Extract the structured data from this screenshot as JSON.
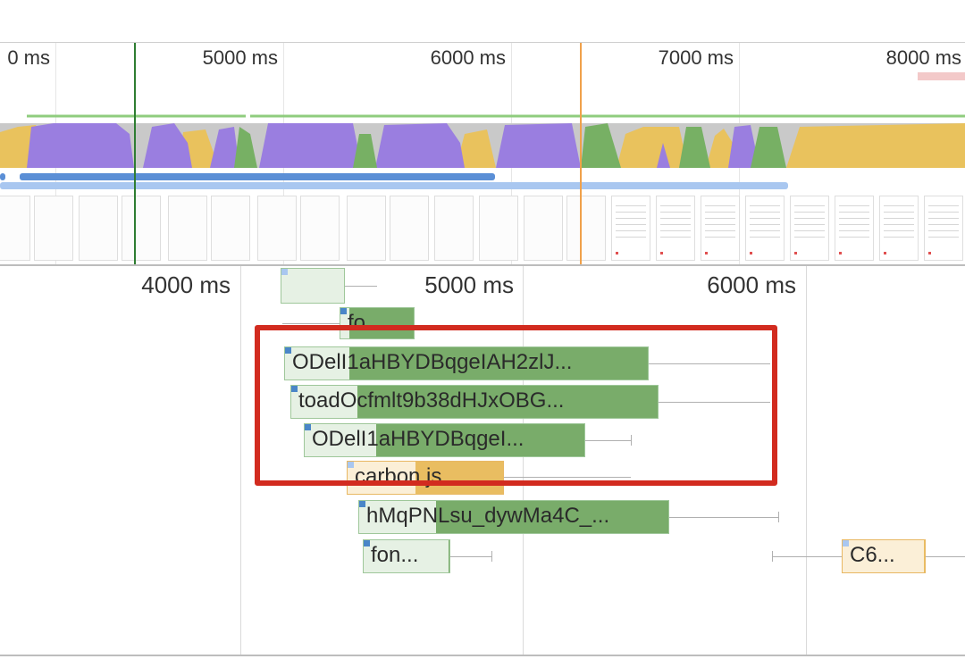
{
  "overview": {
    "time_labels": [
      "0 ms",
      "5000 ms",
      "6000 ms",
      "7000 ms",
      "8000 ms"
    ],
    "markers": [
      {
        "name": "dom-content-loaded-marker",
        "color": "#2e7d32"
      },
      {
        "name": "load-event-marker",
        "color": "#f0a14a"
      }
    ],
    "colors": {
      "scripting": "#e9c25d",
      "rendering": "#9a7ee0",
      "painting": "#77b064",
      "idle": "#c9c9c9",
      "network": "#5b8fd6",
      "network_light": "#a9c7f0"
    },
    "filmstrip_frames": 21,
    "filmstrip_loaded_from": 14
  },
  "waterfall": {
    "time_labels": [
      "4000 ms",
      "5000 ms",
      "6000 ms"
    ],
    "requests": [
      {
        "label": "",
        "type": "doc"
      },
      {
        "label": "fo...",
        "type": "font"
      },
      {
        "label": "ODelI1aHBYDBqgeIAH2zlJ...",
        "type": "font"
      },
      {
        "label": "toadOcfmlt9b38dHJxOBG...",
        "type": "font"
      },
      {
        "label": "ODelI1aHBYDBqgeI...",
        "type": "font"
      },
      {
        "label": "carbon.js",
        "type": "script"
      },
      {
        "label": "hMqPNLsu_dywMa4C_...",
        "type": "font"
      },
      {
        "label": "fon...",
        "type": "font"
      },
      {
        "label": "C6...",
        "type": "script"
      }
    ]
  },
  "highlight": {
    "color": "#d22b1f"
  }
}
